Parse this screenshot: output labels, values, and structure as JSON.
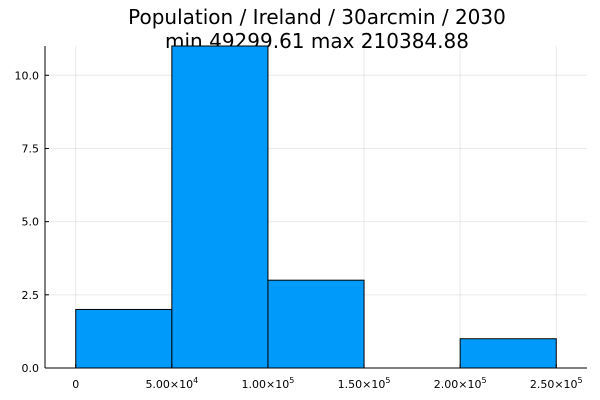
{
  "chart_data": {
    "type": "bar",
    "title": "Population / Ireland / 30arcmin / 2030",
    "subtitle": "min 49299.61  max 210384.88",
    "xlabel": "",
    "ylabel": "",
    "bins": [
      {
        "x0": 0,
        "x1": 50000,
        "count": 2
      },
      {
        "x0": 50000,
        "x1": 100000,
        "count": 11
      },
      {
        "x0": 100000,
        "x1": 150000,
        "count": 3
      },
      {
        "x0": 150000,
        "x1": 200000,
        "count": 0
      },
      {
        "x0": 200000,
        "x1": 250000,
        "count": 1
      }
    ],
    "xlim": [
      -16000,
      266000
    ],
    "ylim": [
      0,
      11
    ],
    "xticks": [
      {
        "value": 0,
        "label": "0",
        "exp": ""
      },
      {
        "value": 50000,
        "label": "5.00×10",
        "exp": "4"
      },
      {
        "value": 100000,
        "label": "1.00×10",
        "exp": "5"
      },
      {
        "value": 150000,
        "label": "1.50×10",
        "exp": "5"
      },
      {
        "value": 200000,
        "label": "2.00×10",
        "exp": "5"
      },
      {
        "value": 250000,
        "label": "2.50×10",
        "exp": "5"
      }
    ],
    "yticks": [
      {
        "value": 0,
        "label": "0.0"
      },
      {
        "value": 2.5,
        "label": "2.5"
      },
      {
        "value": 5,
        "label": "5.0"
      },
      {
        "value": 7.5,
        "label": "7.5"
      },
      {
        "value": 10,
        "label": "10.0"
      }
    ],
    "bar_color": "#009AFA",
    "grid": true,
    "legend": "none"
  }
}
